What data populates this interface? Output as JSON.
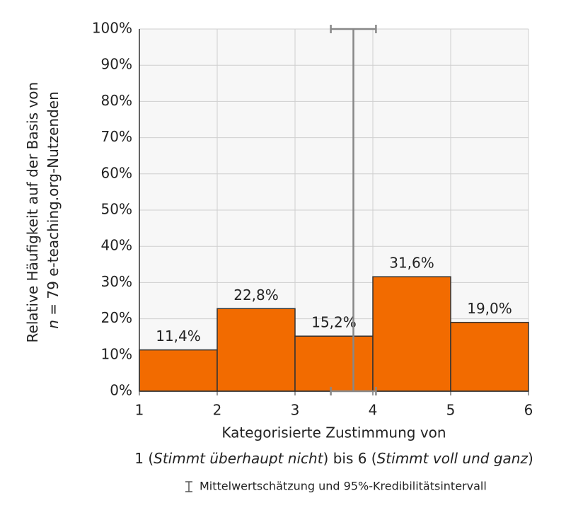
{
  "chart_data": {
    "type": "histogram",
    "bins": [
      1,
      2,
      3,
      4,
      5,
      6
    ],
    "values": [
      11.4,
      22.8,
      15.2,
      31.6,
      19.0
    ],
    "value_labels": [
      "11,4%",
      "22,8%",
      "15,2%",
      "31,6%",
      "19,0%"
    ],
    "color": "#f26b00",
    "xlim": [
      1,
      6
    ],
    "xticks": [
      1,
      2,
      3,
      4,
      5,
      6
    ],
    "ylim": [
      0,
      100
    ],
    "yticks": [
      {
        "value": 0,
        "label": "0%"
      },
      {
        "value": 10,
        "label": "10%"
      },
      {
        "value": 20,
        "label": "20%"
      },
      {
        "value": 30,
        "label": "30%"
      },
      {
        "value": 40,
        "label": "40%"
      },
      {
        "value": 50,
        "label": "50%"
      },
      {
        "value": 60,
        "label": "60%"
      },
      {
        "value": 70,
        "label": "70%"
      },
      {
        "value": 80,
        "label": "80%"
      },
      {
        "value": 90,
        "label": "90%"
      },
      {
        "value": 100,
        "label": "100%"
      }
    ],
    "grid": true,
    "mean_estimate": {
      "mean": 3.75,
      "low": 3.46,
      "high": 4.04
    },
    "y_label": [
      "Relative Häufigkeit auf der Basis von",
      [
        "n",
        " = 79 e-teaching.org-Nutzenden"
      ]
    ],
    "x_label": [
      "Kategorisierte Zustimmung von",
      [
        "1 (",
        "Stimmt überhaupt nicht",
        ") bis 6 (",
        "Stimmt voll und ganz",
        ")"
      ]
    ],
    "legend_note": "Mittelwertschätzung und 95%-Kredibilitätsintervall"
  }
}
